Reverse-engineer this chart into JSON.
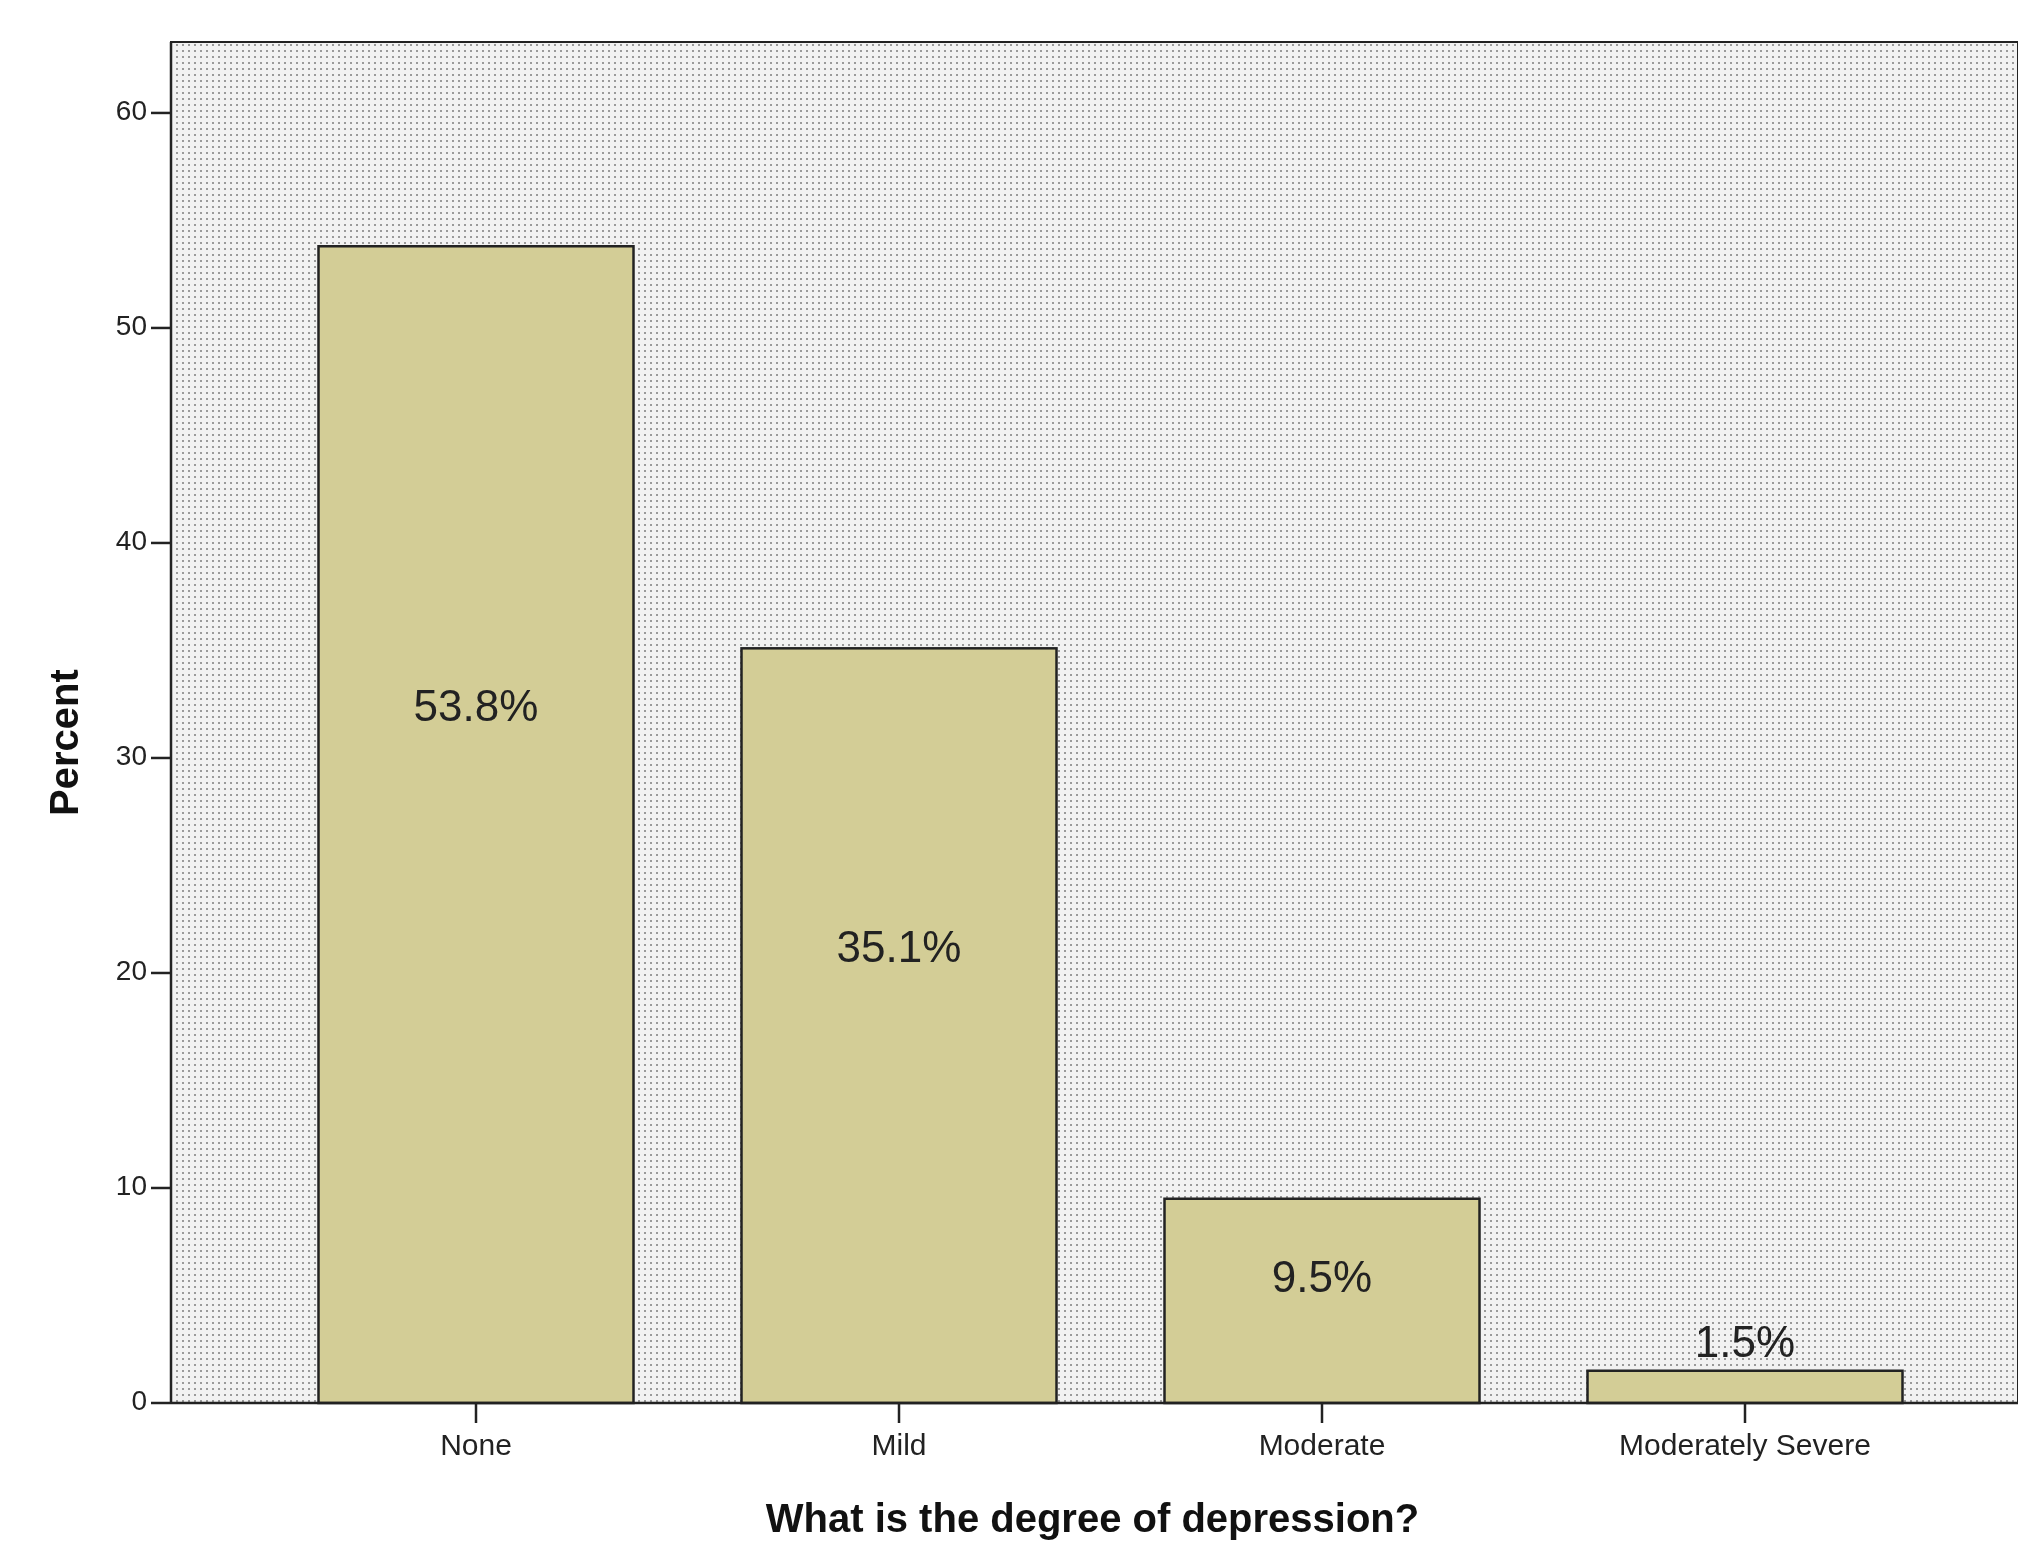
{
  "chart_data": {
    "type": "bar",
    "xlabel": "What is the degree of depression?",
    "ylabel": "Percent",
    "categories": [
      "None",
      "Mild",
      "Moderate",
      "Moderately Severe"
    ],
    "values": [
      53.8,
      35.1,
      9.5,
      1.5
    ],
    "value_labels": [
      "53.8%",
      "35.1%",
      "9.5%",
      "1.5%"
    ],
    "color": "#d3cd96",
    "ylim": [
      0,
      63.3
    ],
    "yticks": [
      0,
      10,
      20,
      30,
      40,
      50,
      60
    ],
    "grid": false
  }
}
